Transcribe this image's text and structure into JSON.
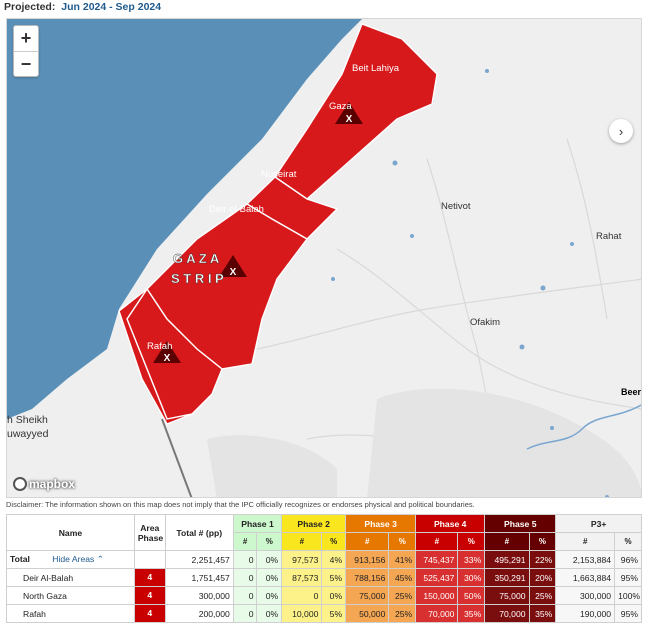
{
  "header": {
    "label": "Projected:",
    "period": "Jun 2024 - Sep 2024"
  },
  "map": {
    "zoom_in": "+",
    "zoom_out": "−",
    "next": "›",
    "attribution": "mapbox",
    "strip_name_line1": "G A Z A",
    "strip_name_line2": "S T R I P",
    "places": {
      "beit_lahiya": "Beit Lahiya",
      "gaza": "Gaza",
      "nuseirat": "Nuseirat",
      "deir_el_balah": "Deir el-Balah",
      "rafah": "Rafah",
      "netivot": "Netivot",
      "rahat": "Rahat",
      "ofakim": "Ofakim",
      "beersheba": "Beers",
      "sheikh_line1": "h Sheikh",
      "sheikh_line2": "uwayyed"
    },
    "colors": {
      "sea": "#5a8fb8",
      "land": "#efefef",
      "phase4": "#d7191c",
      "phase5": "#5a0000"
    },
    "markers": [
      "famine-marker-icon",
      "famine-marker-icon",
      "famine-marker-icon"
    ]
  },
  "disclaimer": "Disclaimer: The information shown on this map does not imply that the IPC officially recognizes or endorses physical and political boundaries.",
  "table": {
    "headers": {
      "name": "Name",
      "area_phase_1": "Area",
      "area_phase_2": "Phase",
      "total": "Total # (pp)",
      "phase1": "Phase 1",
      "phase2": "Phase 2",
      "phase3": "Phase 3",
      "phase4": "Phase 4",
      "phase5": "Phase 5",
      "p3plus": "P3+",
      "num": "#",
      "pct": "%"
    },
    "total_row": {
      "name": "Total",
      "hide_areas": "Hide Areas",
      "total": "2,251,457",
      "p1n": "0",
      "p1p": "0%",
      "p2n": "97,573",
      "p2p": "4%",
      "p3n": "913,156",
      "p3p": "41%",
      "p4n": "745,437",
      "p4p": "33%",
      "p5n": "495,291",
      "p5p": "22%",
      "p3plusn": "2,153,884",
      "p3plusp": "96%"
    },
    "rows": [
      {
        "name": "Deir Al-Balah",
        "phase": "4",
        "total": "1,751,457",
        "p1n": "0",
        "p1p": "0%",
        "p2n": "87,573",
        "p2p": "5%",
        "p3n": "788,156",
        "p3p": "45%",
        "p4n": "525,437",
        "p4p": "30%",
        "p5n": "350,291",
        "p5p": "20%",
        "p3plusn": "1,663,884",
        "p3plusp": "95%"
      },
      {
        "name": "North Gaza",
        "phase": "4",
        "total": "300,000",
        "p1n": "0",
        "p1p": "0%",
        "p2n": "0",
        "p2p": "0%",
        "p3n": "75,000",
        "p3p": "25%",
        "p4n": "150,000",
        "p4p": "50%",
        "p5n": "75,000",
        "p5p": "25%",
        "p3plusn": "300,000",
        "p3plusp": "100%"
      },
      {
        "name": "Rafah",
        "phase": "4",
        "total": "200,000",
        "p1n": "0",
        "p1p": "0%",
        "p2n": "10,000",
        "p2p": "5%",
        "p3n": "50,000",
        "p3p": "25%",
        "p4n": "70,000",
        "p4p": "35%",
        "p5n": "70,000",
        "p5p": "35%",
        "p3plusn": "190,000",
        "p3plusp": "95%"
      }
    ]
  }
}
